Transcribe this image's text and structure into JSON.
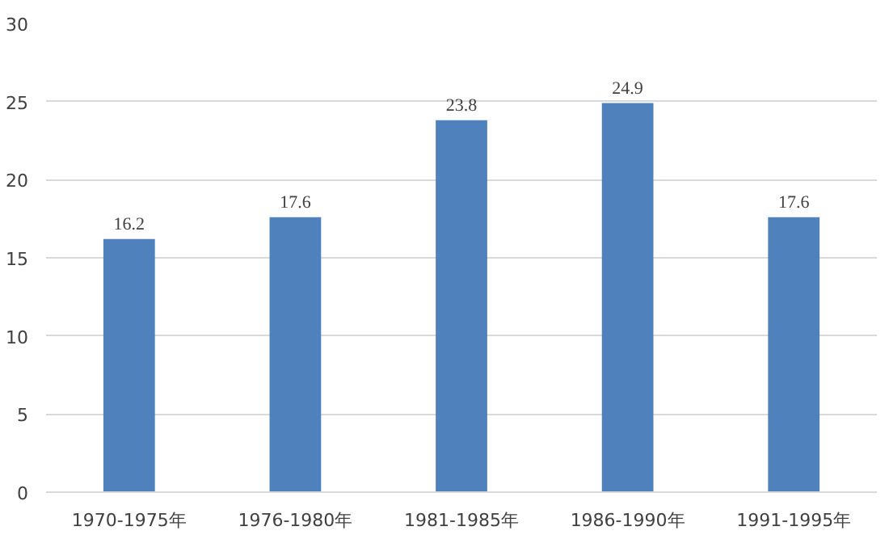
{
  "chart_data": {
    "type": "bar",
    "categories": [
      "1970-1975年",
      "1976-1980年",
      "1981-1985年",
      "1986-1990年",
      "1991-1995年"
    ],
    "values": [
      16.2,
      17.6,
      23.8,
      24.9,
      17.6
    ],
    "color": "#4f81bd",
    "ylim": [
      0,
      30
    ],
    "yticks": [
      0,
      5,
      10,
      15,
      20,
      25,
      30
    ],
    "grid": "y",
    "data_labels": true
  }
}
